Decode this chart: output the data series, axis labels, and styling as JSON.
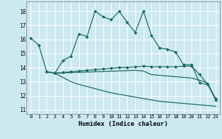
{
  "title": "",
  "xlabel": "Humidex (Indice chaleur)",
  "background_color": "#cce9f0",
  "grid_color": "#ffffff",
  "line_color": "#1a6b5a",
  "xlim": [
    -0.5,
    23.5
  ],
  "ylim": [
    10.7,
    18.7
  ],
  "yticks": [
    11,
    12,
    13,
    14,
    15,
    16,
    17,
    18
  ],
  "xticks": [
    0,
    1,
    2,
    3,
    4,
    5,
    6,
    7,
    8,
    9,
    10,
    11,
    12,
    13,
    14,
    15,
    16,
    17,
    18,
    19,
    20,
    21,
    22,
    23
  ],
  "line1_x": [
    0,
    1,
    2,
    3,
    4,
    5,
    6,
    7,
    8,
    9,
    10,
    11,
    12,
    13,
    14,
    15,
    16,
    17,
    18,
    19,
    20,
    21,
    22,
    23
  ],
  "line1_y": [
    16.1,
    15.6,
    13.7,
    13.6,
    14.5,
    14.8,
    16.4,
    16.2,
    18.0,
    17.6,
    17.4,
    18.0,
    17.2,
    16.5,
    18.0,
    16.3,
    15.4,
    15.3,
    15.1,
    14.2,
    14.2,
    12.9,
    12.8,
    11.7
  ],
  "line2_x": [
    2,
    3,
    4,
    5,
    6,
    7,
    8,
    9,
    10,
    11,
    12,
    13,
    14,
    15,
    16,
    17,
    18,
    19,
    20,
    21,
    22,
    23
  ],
  "line2_y": [
    13.7,
    13.6,
    13.65,
    13.7,
    13.75,
    13.8,
    13.85,
    13.9,
    13.95,
    14.0,
    14.0,
    14.05,
    14.1,
    14.05,
    14.05,
    14.05,
    14.05,
    14.1,
    14.1,
    13.5,
    12.8,
    11.8
  ],
  "line3_x": [
    2,
    3,
    4,
    5,
    6,
    7,
    8,
    9,
    10,
    11,
    12,
    13,
    14,
    15,
    16,
    17,
    18,
    19,
    20,
    21,
    22,
    23
  ],
  "line3_y": [
    13.7,
    13.6,
    13.62,
    13.64,
    13.66,
    13.68,
    13.7,
    13.72,
    13.74,
    13.76,
    13.78,
    13.8,
    13.75,
    13.5,
    13.45,
    13.4,
    13.35,
    13.3,
    13.25,
    13.1,
    12.9,
    11.7
  ],
  "line4_x": [
    2,
    3,
    4,
    5,
    6,
    7,
    8,
    9,
    10,
    11,
    12,
    13,
    14,
    15,
    16,
    17,
    18,
    19,
    20,
    21,
    22,
    23
  ],
  "line4_y": [
    13.7,
    13.6,
    13.3,
    13.0,
    12.8,
    12.65,
    12.5,
    12.35,
    12.2,
    12.1,
    12.0,
    11.9,
    11.8,
    11.7,
    11.6,
    11.55,
    11.5,
    11.45,
    11.4,
    11.35,
    11.3,
    11.25
  ]
}
